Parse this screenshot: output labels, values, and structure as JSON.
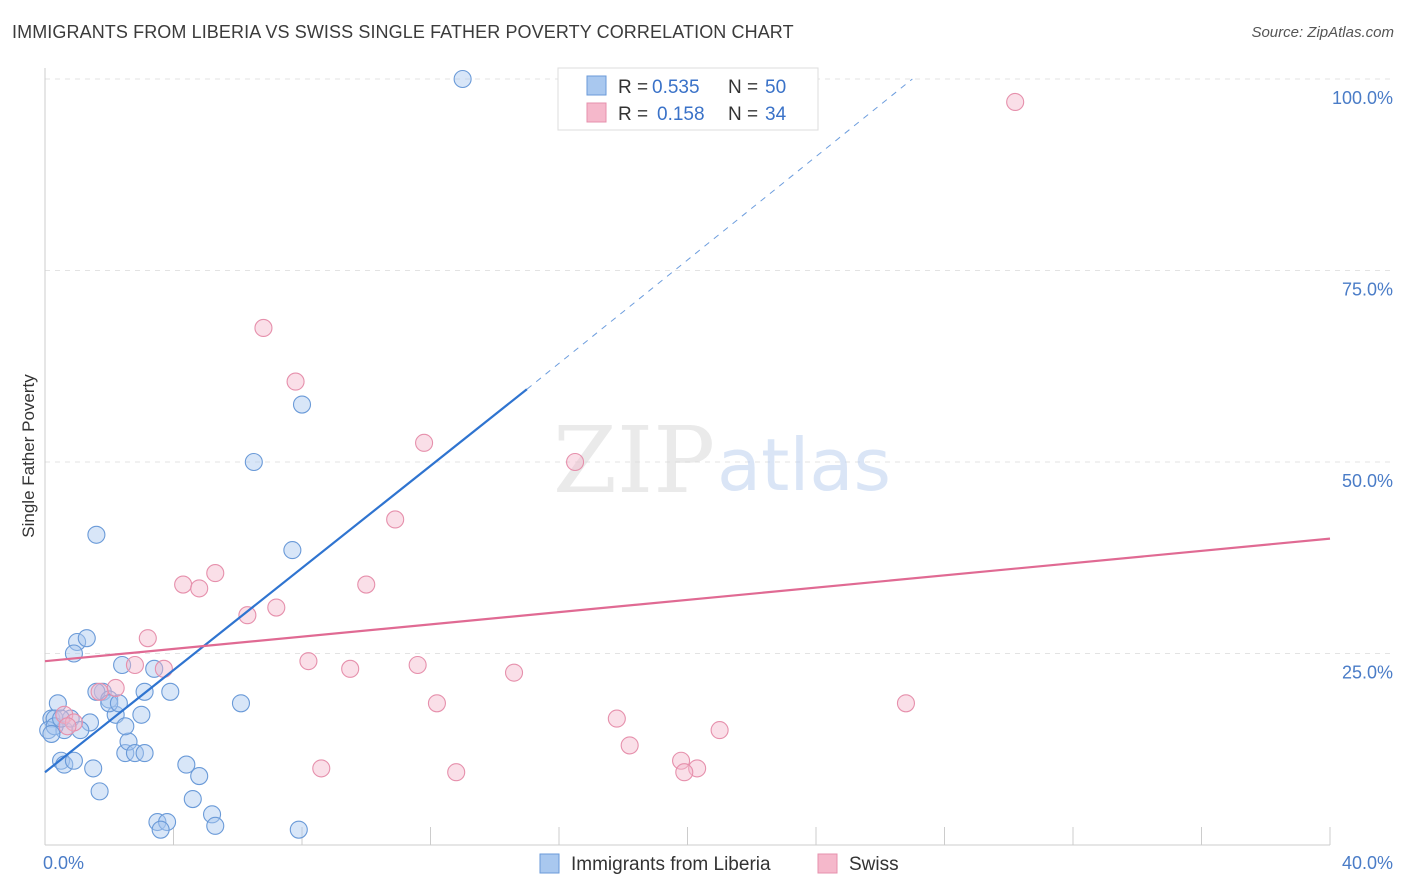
{
  "title": "IMMIGRANTS FROM LIBERIA VS SWISS SINGLE FATHER POVERTY CORRELATION CHART",
  "source": "Source: ZipAtlas.com",
  "watermark": {
    "zip": "ZIP",
    "atlas": "atlas"
  },
  "colors": {
    "blue_fill": "#a9c8ef",
    "blue_stroke": "#6a9ad8",
    "blue_line": "#2f74d0",
    "pink_fill": "#f5b8cb",
    "pink_stroke": "#e690ac",
    "pink_line": "#e06a93",
    "tick_text": "#4a7cc7",
    "grid": "#e3e3e3"
  },
  "legend": {
    "rows": [
      {
        "r_label": "R = ",
        "r_value": "0.535",
        "n_label": "N = ",
        "n_value": "50"
      },
      {
        "r_label": "R = ",
        "r_value": "0.158",
        "n_label": "N = ",
        "n_value": "34"
      }
    ]
  },
  "chart_data": {
    "type": "scatter",
    "title": "IMMIGRANTS FROM LIBERIA VS SWISS SINGLE FATHER POVERTY CORRELATION CHART",
    "xlabel": "",
    "ylabel": "Single Father Poverty",
    "xlim": [
      0,
      40
    ],
    "ylim": [
      0,
      100
    ],
    "x_tick_labels": [
      "0.0%",
      "40.0%"
    ],
    "y_ticks": [
      25,
      50,
      75,
      100
    ],
    "y_tick_labels": [
      "25.0%",
      "50.0%",
      "75.0%",
      "100.0%"
    ],
    "grid": true,
    "legend_position": "top-center",
    "series": [
      {
        "name": "Immigrants from Liberia",
        "color": "#a9c8ef",
        "x": [
          13.0,
          8.0,
          6.5,
          7.7,
          1.6,
          1.0,
          1.3,
          2.4,
          0.9,
          3.1,
          1.8,
          1.6,
          2.0,
          0.4,
          0.2,
          0.3,
          0.1,
          0.6,
          0.8,
          1.4,
          2.2,
          2.0,
          2.3,
          3.0,
          6.1,
          3.4,
          2.5,
          2.6,
          2.8,
          3.1,
          1.5,
          0.5,
          0.6,
          0.9,
          1.7,
          4.4,
          4.8,
          3.5,
          3.8,
          3.6,
          4.6,
          5.2,
          5.3,
          7.9,
          0.3,
          1.1,
          2.5,
          3.9,
          0.2,
          0.5
        ],
        "y": [
          100.0,
          57.5,
          50.0,
          38.5,
          40.5,
          26.5,
          27.0,
          23.5,
          25.0,
          20.0,
          20.0,
          20.0,
          19.0,
          18.5,
          16.5,
          16.5,
          15.0,
          15.0,
          16.5,
          16.0,
          17.0,
          18.5,
          18.5,
          17.0,
          18.5,
          23.0,
          12.0,
          13.5,
          12.0,
          12.0,
          10.0,
          11.0,
          10.5,
          11.0,
          7.0,
          10.5,
          9.0,
          3.0,
          3.0,
          2.0,
          6.0,
          4.0,
          2.5,
          2.0,
          15.5,
          15.0,
          15.5,
          20.0,
          14.5,
          16.5
        ]
      },
      {
        "name": "Swiss",
        "color": "#f5b8cb",
        "x": [
          30.2,
          6.8,
          7.8,
          11.8,
          16.5,
          10.9,
          5.3,
          4.3,
          4.8,
          6.3,
          7.2,
          10.0,
          8.2,
          3.2,
          2.8,
          3.7,
          9.5,
          11.6,
          12.2,
          14.6,
          8.6,
          17.8,
          26.8,
          21.0,
          19.8,
          20.3,
          19.9,
          18.2,
          12.8,
          0.6,
          2.2,
          1.7,
          0.9,
          0.7
        ],
        "y": [
          97.0,
          67.5,
          60.5,
          52.5,
          50.0,
          42.5,
          35.5,
          34.0,
          33.5,
          30.0,
          31.0,
          34.0,
          24.0,
          27.0,
          23.5,
          23.0,
          23.0,
          23.5,
          18.5,
          22.5,
          10.0,
          16.5,
          18.5,
          15.0,
          11.0,
          10.0,
          9.5,
          13.0,
          9.5,
          17.0,
          20.5,
          20.0,
          16.0,
          15.5
        ]
      }
    ],
    "trendlines": [
      {
        "series": "Immigrants from Liberia",
        "x_solid": [
          0,
          15.0
        ],
        "y_solid": [
          9.5,
          59.5
        ],
        "x_dashed": [
          15.0,
          27.0
        ],
        "y_dashed": [
          59.5,
          100.0
        ]
      },
      {
        "series": "Swiss",
        "x": [
          0,
          40
        ],
        "y": [
          24.0,
          40.0
        ]
      }
    ]
  }
}
